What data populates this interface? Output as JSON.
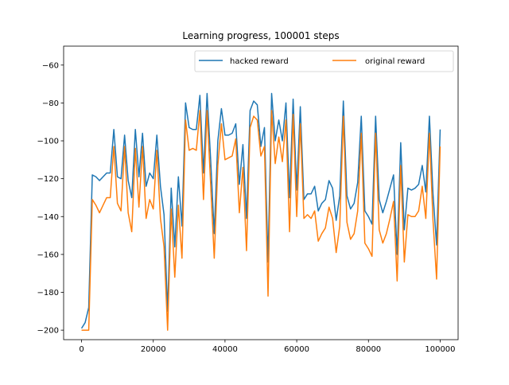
{
  "chart_data": {
    "type": "line",
    "title": "Learning progress, 100001 steps",
    "xlabel": "",
    "ylabel": "",
    "xlim": [
      -5000,
      105000
    ],
    "ylim": [
      -205,
      -50
    ],
    "xticks": [
      0,
      20000,
      40000,
      60000,
      80000,
      100000
    ],
    "yticks": [
      -200,
      -180,
      -160,
      -140,
      -120,
      -100,
      -80,
      -60
    ],
    "grid": false,
    "legend_placement": "upper right",
    "series": [
      {
        "name": "hacked reward",
        "color": "#1f77b4",
        "x": [
          0,
          1000,
          2000,
          3000,
          4000,
          5000,
          6000,
          7000,
          8000,
          9000,
          10000,
          11000,
          12000,
          13000,
          14000,
          15000,
          16000,
          17000,
          18000,
          19000,
          20000,
          21000,
          22000,
          23000,
          24000,
          25000,
          26000,
          27000,
          28000,
          29000,
          30000,
          31000,
          32000,
          33000,
          34000,
          35000,
          36000,
          37000,
          38000,
          39000,
          40000,
          41000,
          42000,
          43000,
          44000,
          45000,
          46000,
          47000,
          48000,
          49000,
          50000,
          51000,
          52000,
          53000,
          54000,
          55000,
          56000,
          57000,
          58000,
          59000,
          60000,
          61000,
          62000,
          63000,
          64000,
          65000,
          66000,
          67000,
          68000,
          69000,
          70000,
          71000,
          72000,
          73000,
          74000,
          75000,
          76000,
          77000,
          78000,
          79000,
          80000,
          81000,
          82000,
          83000,
          84000,
          85000,
          86000,
          87000,
          88000,
          89000,
          90000,
          91000,
          92000,
          93000,
          94000,
          95000,
          96000,
          97000,
          98000,
          99000,
          100000
        ],
        "values": [
          -199,
          -196,
          -188,
          -118,
          -119,
          -121,
          -119,
          -117,
          -117,
          -94,
          -119,
          -120,
          -97,
          -121,
          -130,
          -94,
          -119,
          -96,
          -124,
          -117,
          -120,
          -97,
          -124,
          -139,
          -190,
          -125,
          -156,
          -119,
          -145,
          -80,
          -93,
          -94,
          -94,
          -76,
          -117,
          -75,
          -110,
          -149,
          -100,
          -83,
          -97,
          -97,
          -96,
          -91,
          -123,
          -102,
          -141,
          -84,
          -79,
          -81,
          -103,
          -93,
          -164,
          -75,
          -100,
          -89,
          -100,
          -80,
          -130,
          -78,
          -126,
          -82,
          -131,
          -128,
          -128,
          -124,
          -137,
          -133,
          -131,
          -121,
          -125,
          -142,
          -129,
          -79,
          -129,
          -136,
          -133,
          -122,
          -87,
          -137,
          -140,
          -144,
          -87,
          -131,
          -138,
          -132,
          -125,
          -118,
          -160,
          -101,
          -147,
          -125,
          -126,
          -125,
          -123,
          -113,
          -127,
          -87,
          -128,
          -155,
          -94
        ]
      },
      {
        "name": "original reward",
        "color": "#ff7f0e",
        "x": [
          0,
          1000,
          2000,
          3000,
          4000,
          5000,
          6000,
          7000,
          8000,
          9000,
          10000,
          11000,
          12000,
          13000,
          14000,
          15000,
          16000,
          17000,
          18000,
          19000,
          20000,
          21000,
          22000,
          23000,
          24000,
          25000,
          26000,
          27000,
          28000,
          29000,
          30000,
          31000,
          32000,
          33000,
          34000,
          35000,
          36000,
          37000,
          38000,
          39000,
          40000,
          41000,
          42000,
          43000,
          44000,
          45000,
          46000,
          47000,
          48000,
          49000,
          50000,
          51000,
          52000,
          53000,
          54000,
          55000,
          56000,
          57000,
          58000,
          59000,
          60000,
          61000,
          62000,
          63000,
          64000,
          65000,
          66000,
          67000,
          68000,
          69000,
          70000,
          71000,
          72000,
          73000,
          74000,
          75000,
          76000,
          77000,
          78000,
          79000,
          80000,
          81000,
          82000,
          83000,
          84000,
          85000,
          86000,
          87000,
          88000,
          89000,
          90000,
          91000,
          92000,
          93000,
          94000,
          95000,
          96000,
          97000,
          98000,
          99000,
          100000
        ],
        "values": [
          -200,
          -200,
          -200,
          -131,
          -134,
          -138,
          -134,
          -130,
          -130,
          -103,
          -133,
          -137,
          -103,
          -138,
          -148,
          -104,
          -135,
          -103,
          -141,
          -131,
          -136,
          -105,
          -141,
          -156,
          -200,
          -136,
          -172,
          -134,
          -162,
          -89,
          -105,
          -104,
          -105,
          -84,
          -131,
          -84,
          -123,
          -162,
          -113,
          -91,
          -110,
          -109,
          -108,
          -99,
          -138,
          -114,
          -158,
          -93,
          -87,
          -89,
          -108,
          -103,
          -182,
          -84,
          -112,
          -98,
          -111,
          -89,
          -148,
          -86,
          -140,
          -91,
          -141,
          -139,
          -141,
          -137,
          -153,
          -149,
          -146,
          -135,
          -141,
          -159,
          -145,
          -87,
          -143,
          -152,
          -149,
          -137,
          -96,
          -154,
          -157,
          -161,
          -96,
          -147,
          -154,
          -149,
          -141,
          -132,
          -174,
          -113,
          -164,
          -139,
          -140,
          -140,
          -137,
          -124,
          -141,
          -96,
          -142,
          -173,
          -103
        ]
      }
    ]
  }
}
